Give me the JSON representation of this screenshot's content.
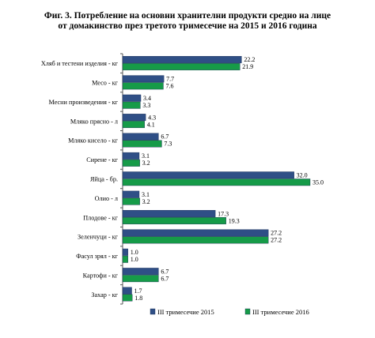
{
  "title_line1": "Фиг. 3. Потребление на основни хранителни продукти средно на лице",
  "title_line2": "от домакинство през третото тримесечие на 2015 и 2016 година",
  "colors": {
    "series_2015": "#2f4f86",
    "series_2016": "#169b48",
    "axis": "#555555"
  },
  "chart_data": {
    "type": "bar",
    "orientation": "horizontal",
    "title": "Фиг. 3. Потребление на основни хранителни продукти средно на лице от домакинство през третото тримесечие на 2015 и 2016 година",
    "categories": [
      "Хляб и тестени изделия - кг",
      "Месо - кг",
      "Месни произведения - кг",
      "Мляко прясно - л",
      "Мляко кисело - кг",
      "Сирене - кг",
      "Яйца - бр.",
      "Олио - л",
      "Плодове - кг",
      "Зеленчуци - кг",
      "Фасул зрял - кг",
      "Картофи - кг",
      "Захар - кг"
    ],
    "series": [
      {
        "name": "III тримесечие 2015",
        "values": [
          22.2,
          7.7,
          3.4,
          4.3,
          6.7,
          3.1,
          32.0,
          3.1,
          17.3,
          27.2,
          1.0,
          6.7,
          1.7
        ],
        "labels": [
          "22.2",
          "7.7",
          "3.4",
          "4.3",
          "6.7",
          "3.1",
          "32.0",
          "3.1",
          "17.3",
          "27.2",
          "1.0",
          "6.7",
          "1.7"
        ]
      },
      {
        "name": "III тримесечие 2016",
        "values": [
          21.9,
          7.6,
          3.3,
          4.1,
          7.3,
          3.2,
          35.0,
          3.2,
          19.3,
          27.2,
          1.0,
          6.7,
          1.8
        ],
        "labels": [
          "21.9",
          "7.6",
          "3.3",
          "4.1",
          "7.3",
          "3.2",
          "35.0",
          "3.2",
          "19.3",
          "27.2",
          "1.0",
          "6.7",
          "1.8"
        ]
      }
    ],
    "xlim": [
      0,
      35
    ],
    "legend": "bottom",
    "grid": false
  }
}
